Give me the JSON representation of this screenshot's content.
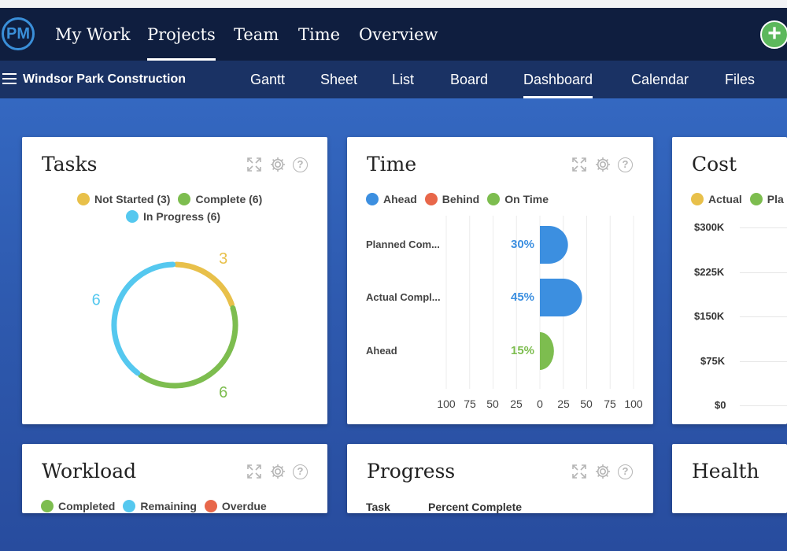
{
  "top_nav": {
    "logo": "PM",
    "items": [
      {
        "label": "My Work",
        "active": false
      },
      {
        "label": "Projects",
        "active": true
      },
      {
        "label": "Team",
        "active": false
      },
      {
        "label": "Time",
        "active": false
      },
      {
        "label": "Overview",
        "active": false
      }
    ],
    "add_icon": "plus-icon"
  },
  "sub_nav": {
    "project_name": "Windsor Park Construction",
    "tabs": [
      {
        "label": "Gantt",
        "active": false
      },
      {
        "label": "Sheet",
        "active": false
      },
      {
        "label": "List",
        "active": false
      },
      {
        "label": "Board",
        "active": false
      },
      {
        "label": "Dashboard",
        "active": true
      },
      {
        "label": "Calendar",
        "active": false
      },
      {
        "label": "Files",
        "active": false
      }
    ]
  },
  "colors": {
    "not_started": "#e8c04a",
    "complete": "#7dbd4f",
    "in_progress": "#55c8ef",
    "ahead": "#3c8fe0",
    "behind": "#e8674a",
    "on_time": "#7dbd4f",
    "overdue": "#e8674a"
  },
  "cards": {
    "tasks": {
      "title": "Tasks",
      "legend": [
        "Not Started (3)",
        "Complete (6)",
        "In Progress (6)"
      ],
      "chart_data": {
        "type": "pie",
        "categories": [
          "Not Started",
          "Complete",
          "In Progress"
        ],
        "values": [
          3,
          6,
          6
        ],
        "labels": [
          "3",
          "6",
          "6"
        ]
      }
    },
    "time": {
      "title": "Time",
      "legend": [
        "Ahead",
        "Behind",
        "On Time"
      ],
      "chart_data": {
        "type": "bar",
        "categories": [
          "Planned Com...",
          "Actual Compl...",
          "Ahead"
        ],
        "values": [
          30,
          45,
          15
        ],
        "value_labels": [
          "30%",
          "45%",
          "15%"
        ],
        "x_ticks": [
          "100",
          "75",
          "50",
          "25",
          "0",
          "25",
          "50",
          "75",
          "100"
        ],
        "xlim": [
          -100,
          100
        ]
      }
    },
    "cost": {
      "title": "Cost",
      "legend": [
        "Actual",
        "Pla"
      ],
      "y_ticks": [
        "$300K",
        "$225K",
        "$150K",
        "$75K",
        "$0"
      ]
    },
    "workload": {
      "title": "Workload",
      "legend": [
        "Completed",
        "Remaining",
        "Overdue"
      ]
    },
    "progress": {
      "title": "Progress",
      "columns": [
        "Task",
        "Percent Complete"
      ]
    },
    "health": {
      "title": "Health"
    }
  }
}
